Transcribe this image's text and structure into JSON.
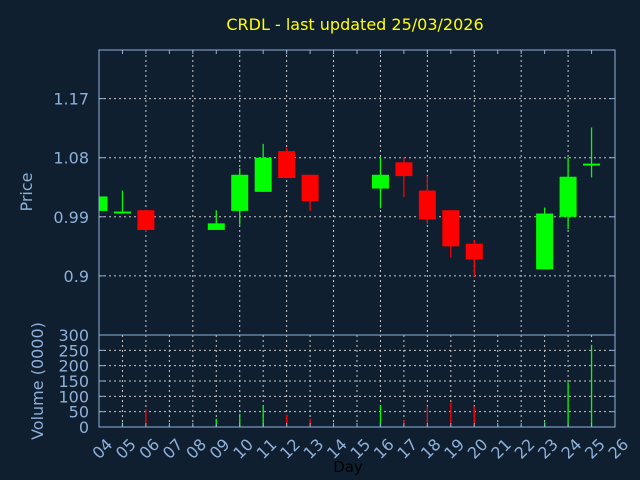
{
  "chart_data": {
    "type": "candlestick",
    "title": "CRDL - last updated 25/03/2026",
    "xlabel": "Day",
    "ylabel": "Price",
    "volume_ylabel": "Volume (0000)",
    "xlim": [
      4,
      26
    ],
    "ylim": [
      0.81,
      1.244
    ],
    "volume_ylim": [
      0,
      300
    ],
    "x_ticks": [
      "04",
      "05",
      "06",
      "07",
      "08",
      "09",
      "10",
      "11",
      "12",
      "13",
      "14",
      "15",
      "16",
      "17",
      "18",
      "19",
      "20",
      "21",
      "22",
      "23",
      "24",
      "25",
      "26"
    ],
    "y_ticks": [
      0.9,
      0.99,
      1.08,
      1.17
    ],
    "y_tick_labels": [
      "0.9",
      "0.99",
      "1.08",
      "1.17"
    ],
    "volume_ticks": [
      0,
      50,
      100,
      150,
      200,
      250,
      300
    ],
    "volume_tick_labels": [
      "0",
      "50",
      "100",
      "150",
      "200",
      "250",
      "300"
    ],
    "grid": true,
    "colors": {
      "up": "#00ff00",
      "down": "#ff0000",
      "background": "#0f1f30",
      "axis": "#8fb0d8",
      "title": "#ffff00"
    },
    "candles": [
      {
        "day": 4,
        "open": 0.999,
        "high": 1.021,
        "low": 0.999,
        "close": 1.021,
        "volume": 0
      },
      {
        "day": 5,
        "open": 0.997,
        "high": 1.03,
        "low": 0.996,
        "close": 0.998,
        "volume": 14
      },
      {
        "day": 6,
        "open": 1.0,
        "high": 1.0,
        "low": 0.967,
        "close": 0.97,
        "volume": 58
      },
      {
        "day": 9,
        "open": 0.97,
        "high": 1.0,
        "low": 0.97,
        "close": 0.98,
        "volume": 27
      },
      {
        "day": 10,
        "open": 0.999,
        "high": 1.064,
        "low": 0.978,
        "close": 1.054,
        "volume": 43
      },
      {
        "day": 11,
        "open": 1.028,
        "high": 1.101,
        "low": 1.028,
        "close": 1.08,
        "volume": 68
      },
      {
        "day": 12,
        "open": 1.09,
        "high": 1.095,
        "low": 1.049,
        "close": 1.049,
        "volume": 40
      },
      {
        "day": 13,
        "open": 1.054,
        "high": 1.054,
        "low": 0.999,
        "close": 1.014,
        "volume": 27
      },
      {
        "day": 16,
        "open": 1.033,
        "high": 1.08,
        "low": 1.003,
        "close": 1.054,
        "volume": 71
      },
      {
        "day": 17,
        "open": 1.073,
        "high": 1.08,
        "low": 1.02,
        "close": 1.052,
        "volume": 22
      },
      {
        "day": 18,
        "open": 1.03,
        "high": 1.052,
        "low": 0.979,
        "close": 0.986,
        "volume": 67
      },
      {
        "day": 19,
        "open": 1.0,
        "high": 1.0,
        "low": 0.928,
        "close": 0.945,
        "volume": 80
      },
      {
        "day": 20,
        "open": 0.949,
        "high": 0.955,
        "low": 0.899,
        "close": 0.925,
        "volume": 67
      },
      {
        "day": 23,
        "open": 0.91,
        "high": 1.004,
        "low": 0.91,
        "close": 0.995,
        "volume": 15
      },
      {
        "day": 24,
        "open": 0.99,
        "high": 1.08,
        "low": 0.971,
        "close": 1.051,
        "volume": 146
      },
      {
        "day": 25,
        "open": 1.07,
        "high": 1.126,
        "low": 1.05,
        "close": 1.071,
        "volume": 268
      }
    ]
  }
}
